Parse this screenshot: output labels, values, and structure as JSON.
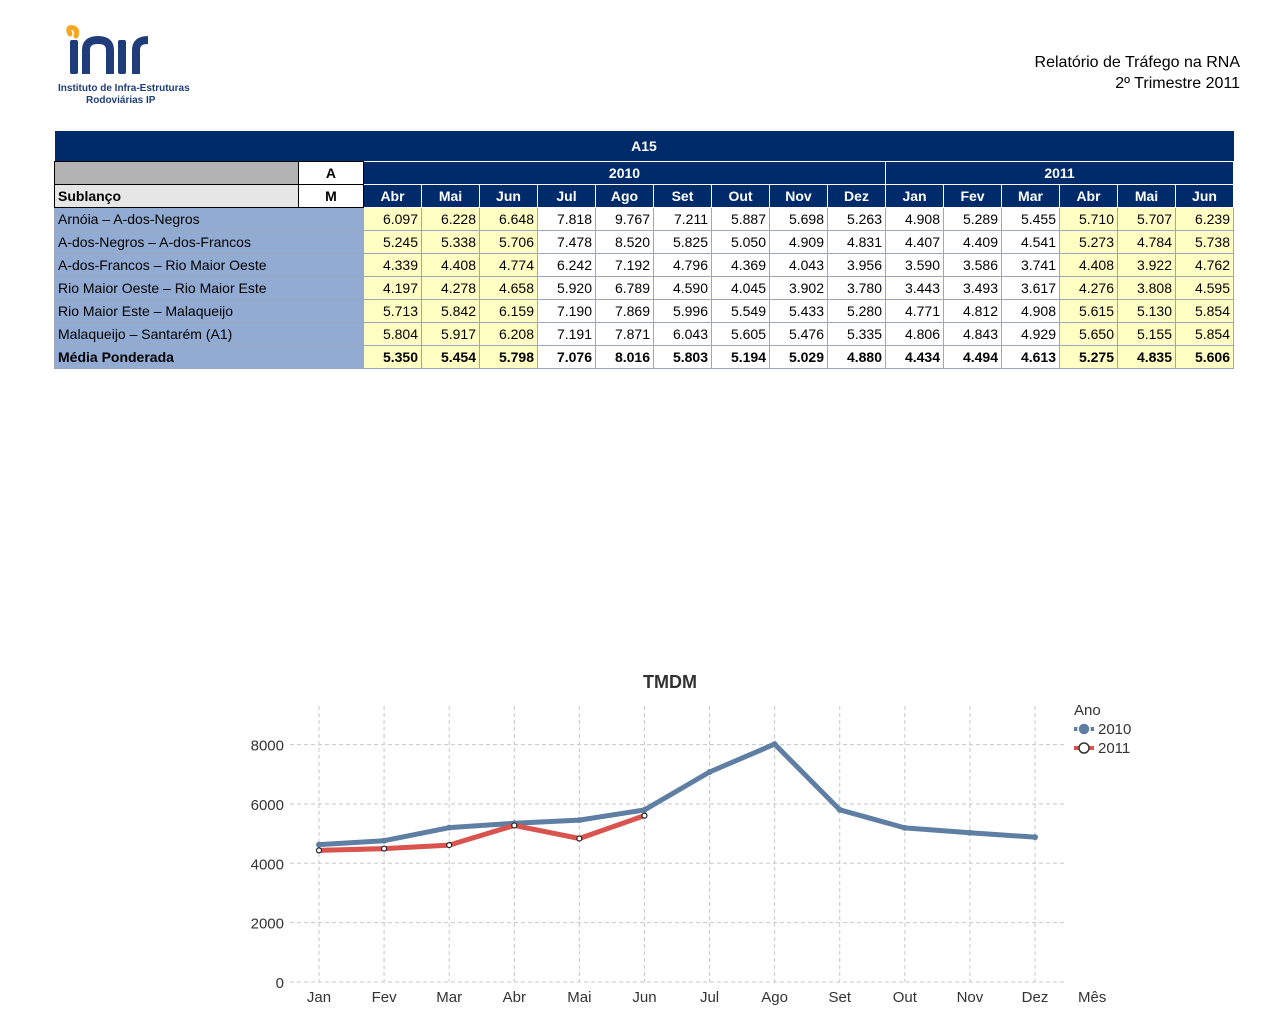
{
  "header": {
    "org_line1": "Instituto de Infra-Estruturas",
    "org_line2": "Rodoviárias IP",
    "report_title": "Relatório de Tráfego na RNA",
    "report_period": "2º Trimestre 2011"
  },
  "table": {
    "title": "A15",
    "corner_a": "A",
    "corner_m": "M",
    "row_label": "Sublanço",
    "years": [
      {
        "label": "2010",
        "span": 9
      },
      {
        "label": "2011",
        "span": 6
      }
    ],
    "months": [
      "Abr",
      "Mai",
      "Jun",
      "Jul",
      "Ago",
      "Set",
      "Out",
      "Nov",
      "Dez",
      "Jan",
      "Fev",
      "Mar",
      "Abr",
      "Mai",
      "Jun"
    ],
    "highlight_cols": [
      0,
      1,
      2,
      12,
      13,
      14
    ],
    "rows": [
      {
        "name": "Arnóia –  A-dos-Negros",
        "values": [
          "6.097",
          "6.228",
          "6.648",
          "7.818",
          "9.767",
          "7.211",
          "5.887",
          "5.698",
          "5.263",
          "4.908",
          "5.289",
          "5.455",
          "5.710",
          "5.707",
          "6.239"
        ]
      },
      {
        "name": "A-dos-Negros –  A-dos-Francos",
        "values": [
          "5.245",
          "5.338",
          "5.706",
          "7.478",
          "8.520",
          "5.825",
          "5.050",
          "4.909",
          "4.831",
          "4.407",
          "4.409",
          "4.541",
          "5.273",
          "4.784",
          "5.738"
        ]
      },
      {
        "name": "A-dos-Francos –  Rio Maior Oeste",
        "values": [
          "4.339",
          "4.408",
          "4.774",
          "6.242",
          "7.192",
          "4.796",
          "4.369",
          "4.043",
          "3.956",
          "3.590",
          "3.586",
          "3.741",
          "4.408",
          "3.922",
          "4.762"
        ]
      },
      {
        "name": "Rio Maior Oeste –  Rio Maior Este",
        "values": [
          "4.197",
          "4.278",
          "4.658",
          "5.920",
          "6.789",
          "4.590",
          "4.045",
          "3.902",
          "3.780",
          "3.443",
          "3.493",
          "3.617",
          "4.276",
          "3.808",
          "4.595"
        ]
      },
      {
        "name": "Rio Maior Este –  Malaqueijo",
        "values": [
          "5.713",
          "5.842",
          "6.159",
          "7.190",
          "7.869",
          "5.996",
          "5.549",
          "5.433",
          "5.280",
          "4.771",
          "4.812",
          "4.908",
          "5.615",
          "5.130",
          "5.854"
        ]
      },
      {
        "name": "Malaqueijo –  Santarém (A1)",
        "values": [
          "5.804",
          "5.917",
          "6.208",
          "7.191",
          "7.871",
          "6.043",
          "5.605",
          "5.476",
          "5.335",
          "4.806",
          "4.843",
          "4.929",
          "5.650",
          "5.155",
          "5.854"
        ]
      }
    ],
    "media": {
      "name": "Média Ponderada",
      "values": [
        "5.350",
        "5.454",
        "5.798",
        "7.076",
        "8.016",
        "5.803",
        "5.194",
        "5.029",
        "4.880",
        "4.434",
        "4.494",
        "4.613",
        "5.275",
        "4.835",
        "5.606"
      ]
    }
  },
  "chart_data": {
    "type": "line",
    "title": "TMDM",
    "xlabel": "Mês",
    "ylabel": "",
    "legend_title": "Ano",
    "legend_position": "top-right",
    "x": [
      "Jan",
      "Fev",
      "Mar",
      "Abr",
      "Mai",
      "Jun",
      "Jul",
      "Ago",
      "Set",
      "Out",
      "Nov",
      "Dez"
    ],
    "y_ticks": [
      0,
      2000,
      4000,
      6000,
      8000
    ],
    "ylim": [
      0,
      9300
    ],
    "grid": true,
    "series": [
      {
        "name": "2010",
        "color": "#5e7ea3",
        "values": [
          4630,
          4760,
          5200,
          5350,
          5454,
          5798,
          7076,
          8016,
          5803,
          5194,
          5029,
          4880
        ]
      },
      {
        "name": "2011",
        "color": "#d9534f",
        "values": [
          4434,
          4494,
          4613,
          5275,
          4835,
          5606,
          null,
          null,
          null,
          null,
          null,
          null
        ]
      }
    ]
  }
}
